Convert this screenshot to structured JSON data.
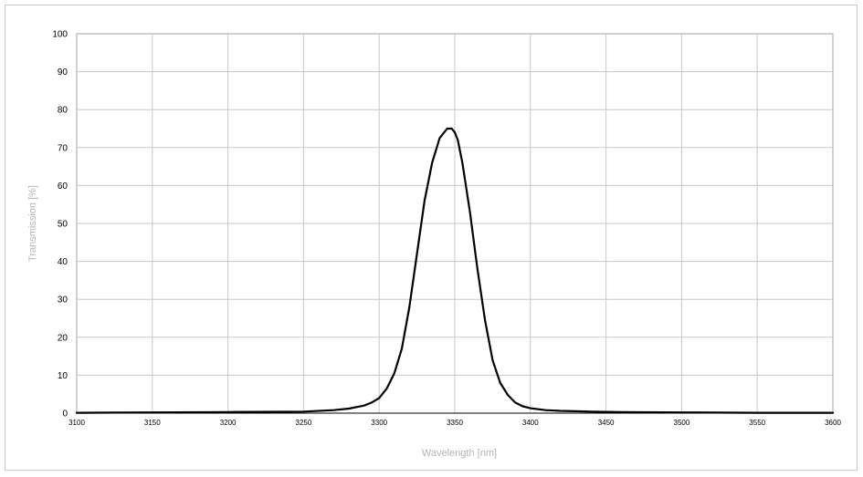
{
  "chart_data": {
    "type": "line",
    "title": "",
    "xlabel": "Wavelength [nm]",
    "ylabel": "Transmission [%]",
    "xlim": [
      3100,
      3600
    ],
    "ylim": [
      0,
      100
    ],
    "xticks": [
      3100,
      3150,
      3200,
      3250,
      3300,
      3350,
      3400,
      3450,
      3500,
      3550,
      3600
    ],
    "yticks": [
      0,
      10,
      20,
      30,
      40,
      50,
      60,
      70,
      80,
      90,
      100
    ],
    "grid": true,
    "legend": "none",
    "series": [
      {
        "color": "#000000",
        "x": [
          3100,
          3150,
          3200,
          3250,
          3270,
          3280,
          3290,
          3295,
          3300,
          3305,
          3310,
          3315,
          3320,
          3325,
          3330,
          3335,
          3340,
          3345,
          3348,
          3350,
          3352,
          3355,
          3360,
          3365,
          3370,
          3375,
          3380,
          3385,
          3390,
          3395,
          3400,
          3410,
          3420,
          3440,
          3460,
          3500,
          3550,
          3600
        ],
        "y": [
          0.1,
          0.2,
          0.3,
          0.4,
          0.8,
          1.2,
          2.0,
          2.8,
          4.0,
          6.5,
          10.5,
          17.0,
          28.0,
          42.0,
          56.0,
          66.0,
          72.5,
          75.0,
          75.0,
          74.0,
          72.0,
          66.0,
          53.0,
          38.0,
          24.5,
          14.0,
          8.0,
          4.8,
          2.8,
          1.8,
          1.3,
          0.8,
          0.6,
          0.4,
          0.3,
          0.2,
          0.1,
          0.1
        ]
      }
    ]
  }
}
